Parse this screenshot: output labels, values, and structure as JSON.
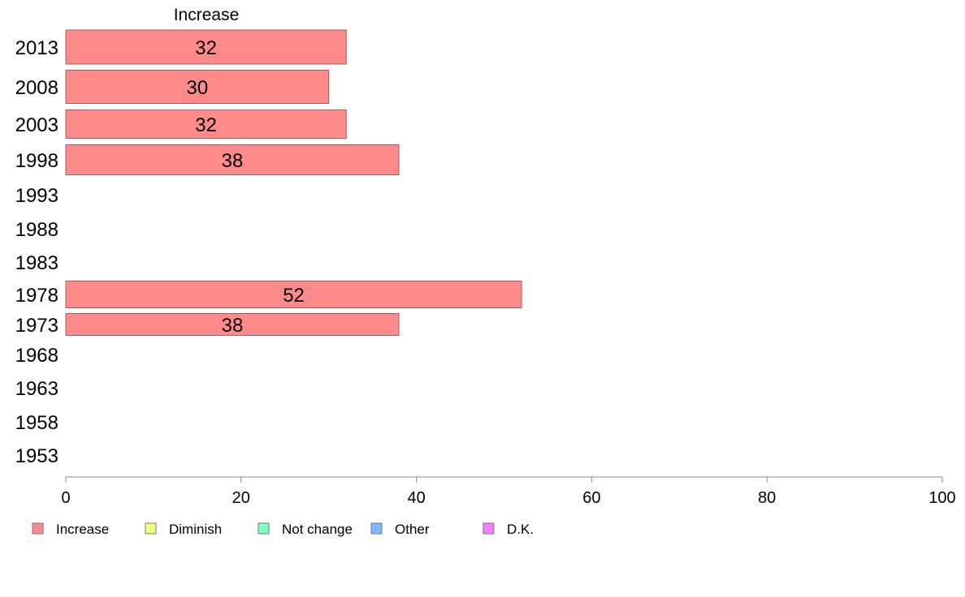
{
  "chart_data": {
    "type": "bar",
    "orientation": "horizontal",
    "title": "Increase",
    "categories": [
      "2013",
      "2008",
      "2003",
      "1998",
      "1993",
      "1988",
      "1983",
      "1978",
      "1973",
      "1968",
      "1963",
      "1958",
      "1953"
    ],
    "series": [
      {
        "name": "Increase",
        "color": "#ff8a8a",
        "values": [
          32,
          30,
          32,
          38,
          null,
          null,
          null,
          52,
          38,
          null,
          null,
          null,
          null
        ]
      }
    ],
    "xlim": [
      0,
      100
    ],
    "xticks": [
      0,
      20,
      40,
      60,
      80,
      100
    ],
    "grid": false,
    "legend": {
      "placement": "bottom-left",
      "entries": [
        {
          "label": "Increase",
          "color": "#ff8a8a"
        },
        {
          "label": "Diminish",
          "color": "#f0ff80"
        },
        {
          "label": "Not change",
          "color": "#80ffc0"
        },
        {
          "label": "Other",
          "color": "#80b8ff"
        },
        {
          "label": "D.K.",
          "color": "#f080ff"
        }
      ]
    }
  }
}
